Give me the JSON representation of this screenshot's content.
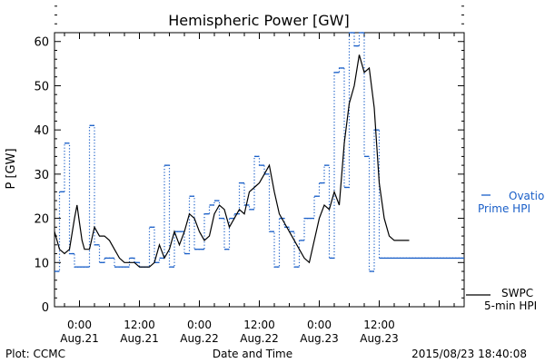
{
  "chart_data": {
    "type": "line",
    "title": "Hemispheric Power [GW]",
    "xlabel": "Date and Time",
    "ylabel": "P [GW]",
    "ylim": [
      0,
      62
    ],
    "yticks": [
      0,
      10,
      20,
      30,
      40,
      50,
      60
    ],
    "xlim": [
      "2015-08-20 19:00",
      "2015-08-24 05:00"
    ],
    "xticks": [
      {
        "t": "2015-08-21 00:00",
        "time": "0:00",
        "date": "Aug.21"
      },
      {
        "t": "2015-08-21 12:00",
        "time": "12:00",
        "date": "Aug.21"
      },
      {
        "t": "2015-08-22 00:00",
        "time": "0:00",
        "date": "Aug.22"
      },
      {
        "t": "2015-08-22 12:00",
        "time": "12:00",
        "date": "Aug.22"
      },
      {
        "t": "2015-08-23 00:00",
        "time": "0:00",
        "date": "Aug.23"
      },
      {
        "t": "2015-08-23 12:00",
        "time": "12:00",
        "date": "Aug.23"
      }
    ],
    "grid": false,
    "legend_placement": "right",
    "series": [
      {
        "name": "Ovation Prime HPI",
        "style": "dotted-step",
        "color": "#1a5fc8",
        "x": [
          "2015-08-20 19:00",
          "2015-08-20 20:00",
          "2015-08-20 21:00",
          "2015-08-20 22:00",
          "2015-08-20 23:00",
          "2015-08-21 00:00",
          "2015-08-21 01:00",
          "2015-08-21 02:00",
          "2015-08-21 03:00",
          "2015-08-21 04:00",
          "2015-08-21 05:00",
          "2015-08-21 06:00",
          "2015-08-21 07:00",
          "2015-08-21 08:00",
          "2015-08-21 09:00",
          "2015-08-21 10:00",
          "2015-08-21 11:00",
          "2015-08-21 12:00",
          "2015-08-21 13:00",
          "2015-08-21 14:00",
          "2015-08-21 15:00",
          "2015-08-21 16:00",
          "2015-08-21 17:00",
          "2015-08-21 18:00",
          "2015-08-21 19:00",
          "2015-08-21 20:00",
          "2015-08-21 21:00",
          "2015-08-21 22:00",
          "2015-08-21 23:00",
          "2015-08-22 00:00",
          "2015-08-22 01:00",
          "2015-08-22 02:00",
          "2015-08-22 03:00",
          "2015-08-22 04:00",
          "2015-08-22 05:00",
          "2015-08-22 06:00",
          "2015-08-22 07:00",
          "2015-08-22 08:00",
          "2015-08-22 09:00",
          "2015-08-22 10:00",
          "2015-08-22 11:00",
          "2015-08-22 12:00",
          "2015-08-22 13:00",
          "2015-08-22 14:00",
          "2015-08-22 15:00",
          "2015-08-22 16:00",
          "2015-08-22 17:00",
          "2015-08-22 18:00",
          "2015-08-22 19:00",
          "2015-08-22 20:00",
          "2015-08-22 21:00",
          "2015-08-22 22:00",
          "2015-08-22 23:00",
          "2015-08-23 00:00",
          "2015-08-23 01:00",
          "2015-08-23 02:00",
          "2015-08-23 03:00",
          "2015-08-23 04:00",
          "2015-08-23 05:00",
          "2015-08-23 06:00",
          "2015-08-23 07:00",
          "2015-08-23 08:00",
          "2015-08-23 09:00",
          "2015-08-23 10:00",
          "2015-08-23 11:00",
          "2015-08-23 12:00",
          "2015-08-23 13:00",
          "2015-08-23 14:00",
          "2015-08-23 15:00",
          "2015-08-23 16:00",
          "2015-08-23 17:00",
          "2015-08-23 18:00"
        ],
        "values": [
          8,
          26,
          37,
          12,
          9,
          9,
          9,
          41,
          14,
          10,
          11,
          11,
          9,
          9,
          9,
          11,
          10,
          9,
          9,
          18,
          10,
          11,
          32,
          9,
          17,
          17,
          12,
          25,
          13,
          13,
          21,
          23,
          24,
          20,
          13,
          20,
          21,
          28,
          23,
          22,
          34,
          32,
          30,
          17,
          9,
          20,
          18,
          17,
          9,
          15,
          20,
          20,
          25,
          28,
          32,
          11,
          53,
          54,
          27,
          62,
          59,
          62,
          34,
          8,
          40,
          11,
          11,
          11,
          11,
          11,
          11,
          11
        ]
      },
      {
        "name": "SWPC 5-min HPI",
        "style": "solid",
        "color": "#000000",
        "x": [
          "2015-08-20 19:00",
          "2015-08-20 20:00",
          "2015-08-20 21:00",
          "2015-08-20 22:00",
          "2015-08-20 23:00",
          "2015-08-20 23:30",
          "2015-08-21 00:00",
          "2015-08-21 00:30",
          "2015-08-21 01:00",
          "2015-08-21 02:00",
          "2015-08-21 03:00",
          "2015-08-21 04:00",
          "2015-08-21 05:00",
          "2015-08-21 06:00",
          "2015-08-21 07:00",
          "2015-08-21 08:00",
          "2015-08-21 09:00",
          "2015-08-21 10:00",
          "2015-08-21 11:00",
          "2015-08-21 12:00",
          "2015-08-21 13:00",
          "2015-08-21 14:00",
          "2015-08-21 15:00",
          "2015-08-21 16:00",
          "2015-08-21 17:00",
          "2015-08-21 18:00",
          "2015-08-21 19:00",
          "2015-08-21 20:00",
          "2015-08-21 21:00",
          "2015-08-21 22:00",
          "2015-08-21 23:00",
          "2015-08-22 00:00",
          "2015-08-22 01:00",
          "2015-08-22 02:00",
          "2015-08-22 03:00",
          "2015-08-22 04:00",
          "2015-08-22 05:00",
          "2015-08-22 06:00",
          "2015-08-22 07:00",
          "2015-08-22 08:00",
          "2015-08-22 09:00",
          "2015-08-22 10:00",
          "2015-08-22 11:00",
          "2015-08-22 12:00",
          "2015-08-22 13:00",
          "2015-08-22 14:00",
          "2015-08-22 15:00",
          "2015-08-22 16:00",
          "2015-08-22 17:00",
          "2015-08-22 18:00",
          "2015-08-22 19:00",
          "2015-08-22 20:00",
          "2015-08-22 21:00",
          "2015-08-22 22:00",
          "2015-08-22 23:00",
          "2015-08-23 00:00",
          "2015-08-23 01:00",
          "2015-08-23 02:00",
          "2015-08-23 03:00",
          "2015-08-23 04:00",
          "2015-08-23 05:00",
          "2015-08-23 06:00",
          "2015-08-23 07:00",
          "2015-08-23 08:00",
          "2015-08-23 09:00",
          "2015-08-23 10:00",
          "2015-08-23 11:00",
          "2015-08-23 12:00",
          "2015-08-23 13:00",
          "2015-08-23 14:00",
          "2015-08-23 15:00",
          "2015-08-23 16:00",
          "2015-08-23 17:00",
          "2015-08-23 18:00"
        ],
        "values": [
          17,
          13,
          12,
          13,
          20,
          23,
          19,
          15,
          13,
          13,
          18,
          16,
          16,
          15,
          13,
          11,
          10,
          10,
          10,
          9,
          9,
          9,
          10,
          14,
          11,
          13,
          17,
          14,
          17,
          21,
          20,
          17,
          15,
          16,
          21,
          23,
          22,
          18,
          20,
          22,
          21,
          26,
          27,
          28,
          30,
          32,
          26,
          21,
          19,
          17,
          15,
          13,
          11,
          10,
          15,
          20,
          23,
          22,
          26,
          23,
          37,
          46,
          50,
          57,
          53,
          54,
          45,
          28,
          20,
          16,
          15,
          15,
          15,
          15
        ]
      }
    ],
    "annotations": {
      "legend_ovation_line1": "Ovation",
      "legend_ovation_line2": "Prime HPI",
      "legend_swpc_line1": "SWPC",
      "legend_swpc_line2": "5-min HPI"
    },
    "footer": {
      "left": "Plot: CCMC",
      "center": "Date and Time",
      "right": "2015/08/23 18:40:08"
    }
  }
}
